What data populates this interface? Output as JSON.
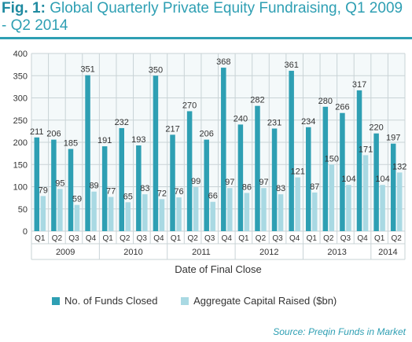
{
  "title": {
    "fig_label": "Fig. 1:",
    "text": "Global Quarterly Private Equity Fundraising, Q1 2009 - Q2 2014"
  },
  "source": "Source: Preqin Funds in Market",
  "colors": {
    "funds": "#2e9fb3",
    "capital": "#a9d9e3",
    "accent": "#2e9fb3"
  },
  "chart_data": {
    "type": "bar",
    "xlabel": "Date of Final Close",
    "ylabel": "",
    "ylim": [
      0,
      400
    ],
    "yticks": [
      0,
      50,
      100,
      150,
      200,
      250,
      300,
      350,
      400
    ],
    "grid": true,
    "legend_position": "bottom",
    "categories": [
      "Q1",
      "Q2",
      "Q3",
      "Q4",
      "Q1",
      "Q2",
      "Q3",
      "Q4",
      "Q1",
      "Q2",
      "Q3",
      "Q4",
      "Q1",
      "Q2",
      "Q3",
      "Q4",
      "Q1",
      "Q2",
      "Q3",
      "Q4",
      "Q1",
      "Q2"
    ],
    "year_groups": [
      {
        "label": "2009",
        "count": 4
      },
      {
        "label": "2010",
        "count": 4
      },
      {
        "label": "2011",
        "count": 4
      },
      {
        "label": "2012",
        "count": 4
      },
      {
        "label": "2013",
        "count": 4
      },
      {
        "label": "2014",
        "count": 2
      }
    ],
    "series": [
      {
        "name": "No. of Funds Closed",
        "values": [
          211,
          206,
          185,
          351,
          191,
          232,
          193,
          350,
          217,
          270,
          206,
          368,
          240,
          282,
          231,
          361,
          234,
          280,
          266,
          317,
          220,
          197
        ]
      },
      {
        "name": "Aggregate Capital Raised ($bn)",
        "values": [
          79,
          95,
          59,
          89,
          77,
          65,
          83,
          72,
          76,
          99,
          66,
          97,
          86,
          97,
          83,
          121,
          87,
          150,
          104,
          171,
          104,
          132
        ]
      }
    ]
  }
}
